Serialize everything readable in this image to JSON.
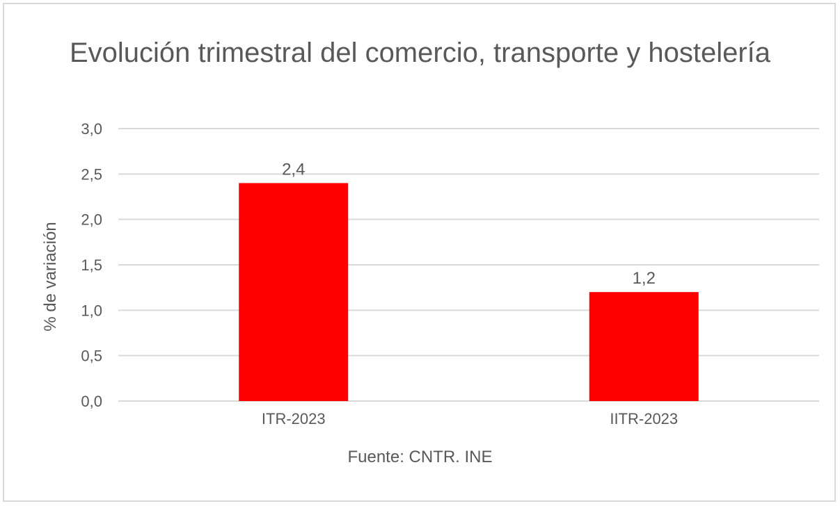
{
  "chart_data": {
    "type": "bar",
    "title": "Evolución trimestral del comercio, transporte y hostelería",
    "categories": [
      "ITR-2023",
      "IITR-2023"
    ],
    "values": [
      2.4,
      1.2
    ],
    "data_labels": [
      "2,4",
      "1,2"
    ],
    "ylabel": "% de variación",
    "xlabel": "",
    "ylim": [
      0,
      3.0
    ],
    "yticks": [
      "0,0",
      "0,5",
      "1,0",
      "1,5",
      "2,0",
      "2,5",
      "3,0"
    ],
    "grid": true,
    "bar_color": "#ff0000",
    "source": "Fuente: CNTR. INE"
  }
}
